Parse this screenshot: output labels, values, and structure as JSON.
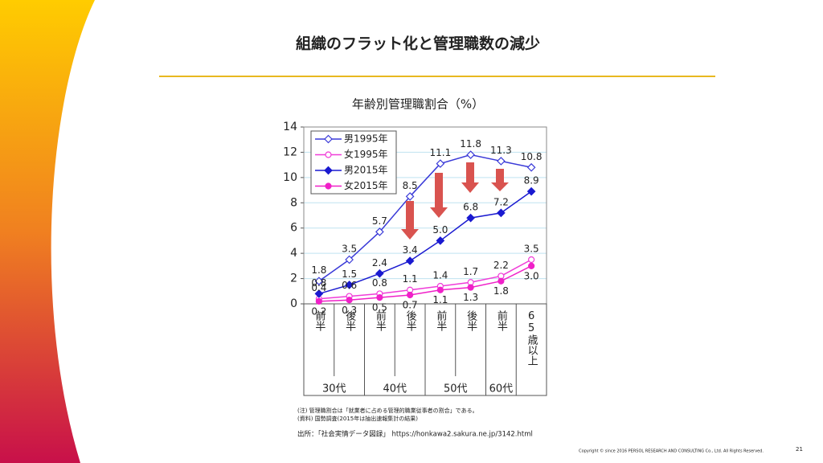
{
  "slide": {
    "title": "組織のフラット化と管理職数の減少",
    "note1": "(注) 管理職割合は「就業者に占める管理的職業従事者の割合」である。",
    "note2": "(資料) 国勢調査(2015年は抽出速報集計の結果)",
    "source": "出所：「社会実情データ図録」 https://honkawa2.sakura.ne.jp/3142.html",
    "copyright": "Copyright © since 2016 PERSOL RESEARCH AND CONSULTING Co., Ltd. All Rights Reserved.",
    "page": "21"
  },
  "chart_data": {
    "type": "line",
    "title": "年齢別管理職割合（%）",
    "categories": [
      "前半",
      "後半",
      "前半",
      "後半",
      "前半",
      "後半",
      "前半",
      "65歳以上"
    ],
    "groups": [
      "30代",
      "40代",
      "50代",
      "60代"
    ],
    "ylim": [
      0,
      14
    ],
    "yticks": [
      0,
      2,
      4,
      6,
      8,
      10,
      12,
      14
    ],
    "grid": true,
    "series": [
      {
        "name": "男1995年",
        "color": "#3a3ad8",
        "marker": "diamond",
        "marker_fill": "open",
        "label_position": "above",
        "values": [
          1.8,
          3.5,
          5.7,
          8.5,
          11.1,
          11.8,
          11.3,
          10.8
        ]
      },
      {
        "name": "女1995年",
        "color": "#f03cd8",
        "marker": "circle",
        "marker_fill": "open",
        "label_position": "above",
        "values": [
          0.4,
          0.6,
          0.8,
          1.1,
          1.4,
          1.7,
          2.2,
          3.5
        ]
      },
      {
        "name": "男2015年",
        "color": "#1a1ad0",
        "marker": "diamond",
        "marker_fill": "filled",
        "label_position": "above",
        "values": [
          0.8,
          1.5,
          2.4,
          3.4,
          5.0,
          6.8,
          7.2,
          8.9
        ],
        "value_labels": [
          "0.8",
          "1.5",
          "2.4",
          "3.4",
          "5.0",
          "6.8",
          "7.2",
          "8.9"
        ]
      },
      {
        "name": "女2015年",
        "color": "#f020c8",
        "marker": "circle",
        "marker_fill": "filled",
        "label_position": "below",
        "values": [
          0.2,
          0.3,
          0.5,
          0.7,
          1.1,
          1.3,
          1.8,
          3.0
        ],
        "value_labels": [
          "0.2",
          "0.3",
          "0.5",
          "0.7",
          "1.1",
          "1.3",
          "1.8",
          "3.0"
        ]
      }
    ]
  }
}
